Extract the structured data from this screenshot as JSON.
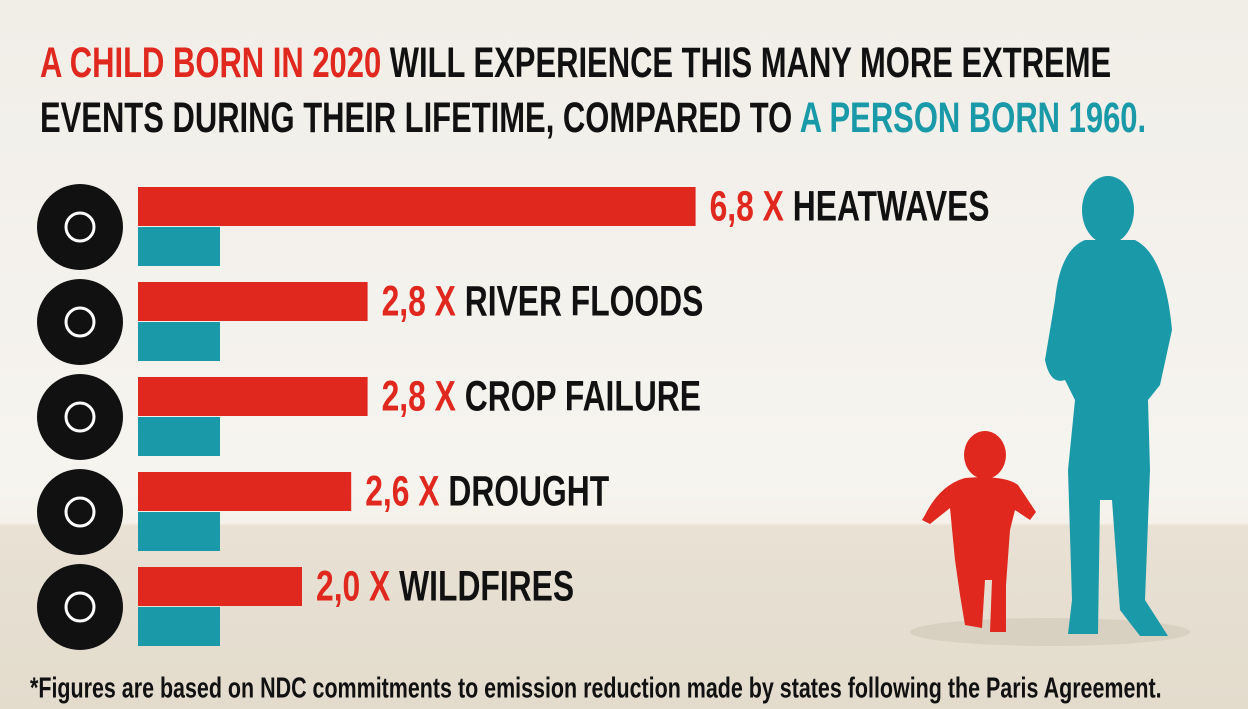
{
  "chart_data": {
    "type": "bar",
    "orientation": "horizontal",
    "title": "WILL EXPERIENCE THIS MANY MORE EXTREME EVENTS DURING THEIR LIFETIME, COMPARED TO",
    "categories": [
      "HEATWAVES",
      "RIVER FLOODS",
      "CROP FAILURE",
      "DROUGHT",
      "WILDFIRES"
    ],
    "series": [
      {
        "name": "A CHILD BORN IN 2020",
        "color": "#e0281e",
        "values": [
          6.8,
          2.8,
          2.8,
          2.6,
          2.0
        ],
        "value_labels": [
          "6,8 X",
          "2,8 X",
          "2,8 X",
          "2,6 X",
          "2,0 X"
        ]
      },
      {
        "name": "A PERSON BORN 1960.",
        "color": "#1a9aa8",
        "values": [
          1,
          1,
          1,
          1,
          1
        ]
      }
    ],
    "footnote": "*Figures are based on NDC commitments to emission reduction made by states following the Paris Agreement."
  }
}
